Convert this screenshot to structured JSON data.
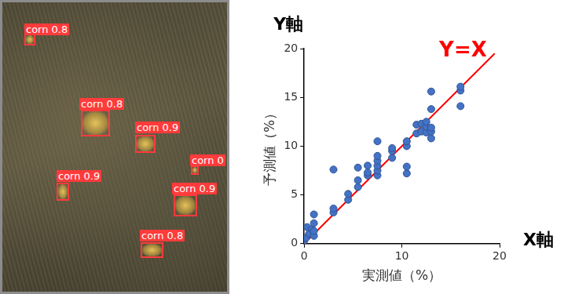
{
  "image": {
    "detections": [
      "corn 0.8",
      "corn 0.8",
      "corn 0.9",
      "corn 0",
      "corn 0.9",
      "corn 0.9",
      "corn 0.8"
    ]
  },
  "chart_data": {
    "type": "scatter",
    "x_label": "実測値（%）",
    "y_label": "予測値（%）",
    "x_axis_name": "X軸",
    "y_axis_name": "Y軸",
    "xlim": [
      0,
      20
    ],
    "xticks": [
      0,
      10,
      20
    ],
    "ylim": [
      0,
      20
    ],
    "yticks": [
      0,
      5,
      10,
      15,
      20
    ],
    "grid": false,
    "series": [
      {
        "type": "scatter",
        "color": "#4472c4",
        "marker": "circle",
        "x": [
          0,
          0.2,
          0.3,
          0.5,
          0.8,
          1,
          1,
          1,
          1,
          3,
          3,
          3,
          4.5,
          4.5,
          5.5,
          5.5,
          5.5,
          6.5,
          6.5,
          6.5,
          7.5,
          7.5,
          7.5,
          7.5,
          7.5,
          7.5,
          9,
          9,
          9,
          10.5,
          10.5,
          10.5,
          10.5,
          11.5,
          11.5,
          12,
          12,
          12.5,
          12.5,
          12.5,
          13,
          13,
          13,
          13,
          13,
          16,
          16,
          16
        ],
        "values": [
          0.3,
          0.6,
          1.7,
          1.0,
          1.5,
          0.8,
          1.3,
          2.1,
          3.0,
          3.2,
          3.6,
          7.6,
          4.5,
          5.1,
          5.8,
          6.5,
          7.8,
          7.0,
          7.3,
          8.0,
          7.0,
          7.5,
          8.0,
          8.5,
          9.0,
          10.5,
          8.8,
          9.5,
          9.8,
          7.2,
          7.9,
          10.0,
          10.5,
          11.3,
          12.2,
          12.3,
          11.5,
          11.4,
          12.0,
          12.5,
          10.8,
          11.5,
          11.9,
          13.8,
          15.6,
          14.1,
          15.7,
          16.1
        ]
      },
      {
        "name": "Y=X",
        "type": "line",
        "color": "#ff0000",
        "line_style": "solid",
        "x": [
          0,
          19.5
        ],
        "values": [
          0,
          19.5
        ]
      }
    ]
  }
}
